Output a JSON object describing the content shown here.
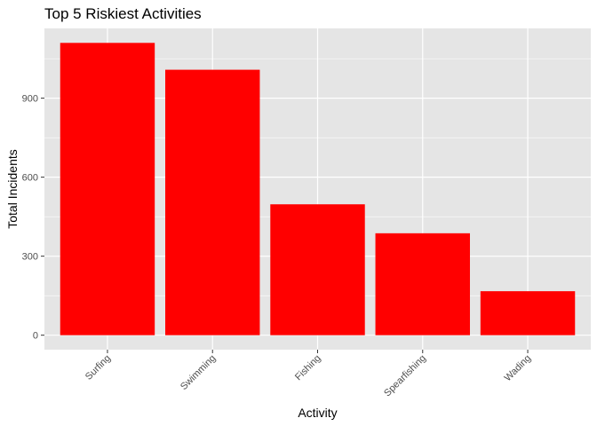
{
  "chart_data": {
    "type": "bar",
    "title": "Top 5 Riskiest Activities",
    "xlabel": "Activity",
    "ylabel": "Total Incidents",
    "categories": [
      "Surfing",
      "Swimming",
      "Fishing",
      "Spearfishing",
      "Wading"
    ],
    "values": [
      1110,
      1008,
      497,
      387,
      167
    ],
    "ylim": [
      -55,
      1165
    ],
    "yticks": [
      0,
      300,
      600,
      900
    ],
    "ytick_labels": [
      "0",
      "300",
      "600",
      "900"
    ],
    "bar_color": "#ff0000",
    "panel_background": "#e5e5e5",
    "grid_color": "#ffffff",
    "grid": true,
    "legend": "none",
    "x_tick_rotation_deg": 45
  }
}
